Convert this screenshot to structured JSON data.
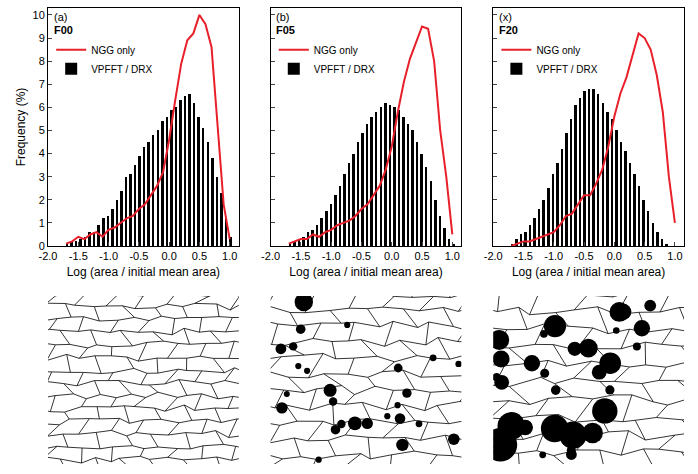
{
  "chart_data": [
    {
      "type": "bar",
      "label": "(a)",
      "title": "F00",
      "x_label": "Log (area / initial mean area)",
      "y_label": "Frequency (%)",
      "xlim": [
        -2.0,
        1.15
      ],
      "ylim": [
        0,
        10.3
      ],
      "xticks": [
        {
          "value": -2,
          "label": "-2.0"
        },
        -1.5,
        {
          "value": -1,
          "label": "-1.0"
        },
        -0.5,
        {
          "value": 0,
          "label": "0.0"
        },
        0.5,
        {
          "value": 1,
          "label": "1.0"
        }
      ],
      "yticks": [
        0,
        1,
        2,
        3,
        4,
        5,
        6,
        7,
        8,
        9,
        10
      ],
      "legend": "upper left",
      "bins": [
        -1.725,
        -1.65,
        -1.575,
        -1.5,
        -1.425,
        -1.35,
        -1.275,
        -1.2,
        -1.125,
        -1.05,
        -0.975,
        -0.9,
        -0.825,
        -0.75,
        -0.675,
        -0.6,
        -0.525,
        -0.45,
        -0.375,
        -0.3,
        -0.225,
        -0.15,
        -0.075,
        0,
        0.075,
        0.15,
        0.225,
        0.3,
        0.375,
        0.45,
        0.525,
        0.6,
        0.675,
        0.75,
        0.825,
        0.9,
        0.975,
        1.05
      ],
      "series": [
        {
          "name": "NGG only",
          "type": "line",
          "color": "#e8202a",
          "line_style": "solid",
          "x": [
            -1.7,
            -1.6,
            -1.5,
            -1.4,
            -1.3,
            -1.2,
            -1.1,
            -1.0,
            -0.9,
            -0.8,
            -0.7,
            -0.6,
            -0.5,
            -0.4,
            -0.3,
            -0.2,
            -0.1,
            0,
            0.1,
            0.2,
            0.3,
            0.4,
            0.5,
            0.6,
            0.7,
            0.8,
            0.9,
            1.0
          ],
          "values": [
            0.1,
            0.2,
            0.4,
            0.3,
            0.5,
            0.6,
            0.4,
            0.7,
            0.8,
            1.0,
            1.2,
            1.3,
            1.6,
            1.8,
            2.2,
            2.6,
            3.2,
            4.6,
            6.3,
            7.9,
            8.9,
            9.2,
            10.0,
            9.6,
            8.6,
            5.2,
            1.8,
            0.3
          ]
        },
        {
          "name": "VPFFT / DRX",
          "type": "bar",
          "color": "#000000",
          "values": [
            0.1,
            0.2,
            0.2,
            0.3,
            0.4,
            0.6,
            0.6,
            0.9,
            1.2,
            1.3,
            1.6,
            2.0,
            2.4,
            3.0,
            3.1,
            3.5,
            3.9,
            4.3,
            4.5,
            4.8,
            5.0,
            5.4,
            5.6,
            5.9,
            6.0,
            6.3,
            6.5,
            6.6,
            6.2,
            5.6,
            5.1,
            4.5,
            3.8,
            3.0,
            2.3,
            1.2,
            0.4
          ]
        }
      ]
    },
    {
      "type": "bar",
      "label": "(b)",
      "title": "F05",
      "x_label": "Log (area / initial mean area)",
      "xlim": [
        -2.0,
        1.15
      ],
      "ylim": [
        0,
        10.3
      ],
      "xticks": [
        {
          "value": -2,
          "label": "-2.0"
        },
        -1.5,
        {
          "value": -1,
          "label": "-1.0"
        },
        -0.5,
        {
          "value": 0,
          "label": "0.0"
        },
        0.5,
        {
          "value": 1,
          "label": "1.0"
        }
      ],
      "yticks": [
        0,
        1,
        2,
        3,
        4,
        5,
        6,
        7,
        8,
        9,
        10
      ],
      "tick_labels": "x",
      "legend": "upper left",
      "bins": [
        -1.725,
        -1.65,
        -1.575,
        -1.5,
        -1.425,
        -1.35,
        -1.275,
        -1.2,
        -1.125,
        -1.05,
        -0.975,
        -0.9,
        -0.825,
        -0.75,
        -0.675,
        -0.6,
        -0.525,
        -0.45,
        -0.375,
        -0.3,
        -0.225,
        -0.15,
        -0.075,
        0,
        0.075,
        0.15,
        0.225,
        0.3,
        0.375,
        0.45,
        0.525,
        0.6,
        0.675,
        0.75,
        0.825,
        0.9,
        0.975,
        1.05
      ],
      "series": [
        {
          "name": "NGG only",
          "type": "line",
          "color": "#e8202a",
          "line_style": "solid",
          "x": [
            -1.7,
            -1.6,
            -1.5,
            -1.4,
            -1.3,
            -1.2,
            -1.1,
            -1.0,
            -0.9,
            -0.8,
            -0.7,
            -0.6,
            -0.5,
            -0.4,
            -0.3,
            -0.2,
            -0.1,
            0,
            0.1,
            0.2,
            0.3,
            0.4,
            0.5,
            0.6,
            0.7,
            0.8,
            0.9,
            1.0
          ],
          "values": [
            0.1,
            0.2,
            0.3,
            0.3,
            0.5,
            0.4,
            0.6,
            0.7,
            0.9,
            1.0,
            1.1,
            1.3,
            1.6,
            1.8,
            2.2,
            2.6,
            3.3,
            4.3,
            5.8,
            7.1,
            8.1,
            8.8,
            9.5,
            9.4,
            8.0,
            5.0,
            3.0,
            0.5
          ]
        },
        {
          "name": "VPFFT / DRX",
          "type": "bar",
          "color": "#000000",
          "values": [
            0.1,
            0.2,
            0.3,
            0.4,
            0.6,
            0.7,
            0.9,
            1.2,
            1.5,
            1.8,
            2.2,
            2.6,
            3.1,
            3.6,
            4.0,
            4.5,
            4.9,
            5.3,
            5.6,
            5.8,
            6.0,
            6.2,
            6.1,
            6.0,
            5.9,
            5.6,
            5.3,
            5.0,
            4.5,
            4.0,
            3.4,
            2.8,
            2.0,
            1.3,
            0.8,
            0.3,
            0.1
          ]
        }
      ]
    },
    {
      "type": "bar",
      "label": "(x)",
      "title": "F20",
      "x_label": "Log (area / initial mean area)",
      "xlim": [
        -2.0,
        1.15
      ],
      "ylim": [
        0,
        10.3
      ],
      "xticks": [
        {
          "value": -2,
          "label": "-2.0"
        },
        -1.5,
        {
          "value": -1,
          "label": "-1.0"
        },
        -0.5,
        {
          "value": 0,
          "label": "0.0"
        },
        0.5,
        {
          "value": 1,
          "label": "1.0"
        }
      ],
      "yticks": [
        0,
        1,
        2,
        3,
        4,
        5,
        6,
        7,
        8,
        9,
        10
      ],
      "tick_labels": "x",
      "legend": "upper left",
      "bins": [
        -1.725,
        -1.65,
        -1.575,
        -1.5,
        -1.425,
        -1.35,
        -1.275,
        -1.2,
        -1.125,
        -1.05,
        -0.975,
        -0.9,
        -0.825,
        -0.75,
        -0.675,
        -0.6,
        -0.525,
        -0.45,
        -0.375,
        -0.3,
        -0.225,
        -0.15,
        -0.075,
        0,
        0.075,
        0.15,
        0.225,
        0.3,
        0.375,
        0.45,
        0.525,
        0.6,
        0.675,
        0.75,
        0.825,
        0.9,
        0.975,
        1.05
      ],
      "series": [
        {
          "name": "NGG only",
          "type": "line",
          "color": "#e8202a",
          "line_style": "solid",
          "x": [
            -1.7,
            -1.6,
            -1.5,
            -1.4,
            -1.3,
            -1.2,
            -1.1,
            -1.0,
            -0.9,
            -0.8,
            -0.7,
            -0.6,
            -0.5,
            -0.4,
            -0.3,
            -0.2,
            -0.1,
            0,
            0.1,
            0.2,
            0.3,
            0.4,
            0.5,
            0.6,
            0.7,
            0.8,
            0.9,
            1.0
          ],
          "values": [
            0.0,
            0.1,
            0.2,
            0.2,
            0.3,
            0.4,
            0.5,
            0.6,
            0.9,
            1.3,
            1.4,
            1.8,
            2.2,
            2.2,
            2.7,
            3.3,
            4.3,
            5.6,
            6.6,
            7.3,
            8.3,
            9.2,
            9.0,
            8.5,
            7.4,
            5.8,
            3.0,
            1.0
          ]
        },
        {
          "name": "VPFFT / DRX",
          "type": "bar",
          "color": "#000000",
          "values": [
            0.1,
            0.3,
            0.5,
            0.6,
            0.9,
            1.2,
            1.6,
            2.0,
            2.5,
            3.1,
            3.6,
            4.2,
            4.9,
            5.5,
            6.1,
            6.4,
            6.7,
            6.8,
            6.8,
            6.6,
            6.2,
            5.8,
            5.5,
            5.0,
            4.5,
            4.1,
            3.6,
            3.1,
            2.6,
            2.0,
            1.5,
            1.0,
            0.6,
            0.3,
            0.1,
            0.0,
            0.0
          ]
        }
      ]
    }
  ]
}
